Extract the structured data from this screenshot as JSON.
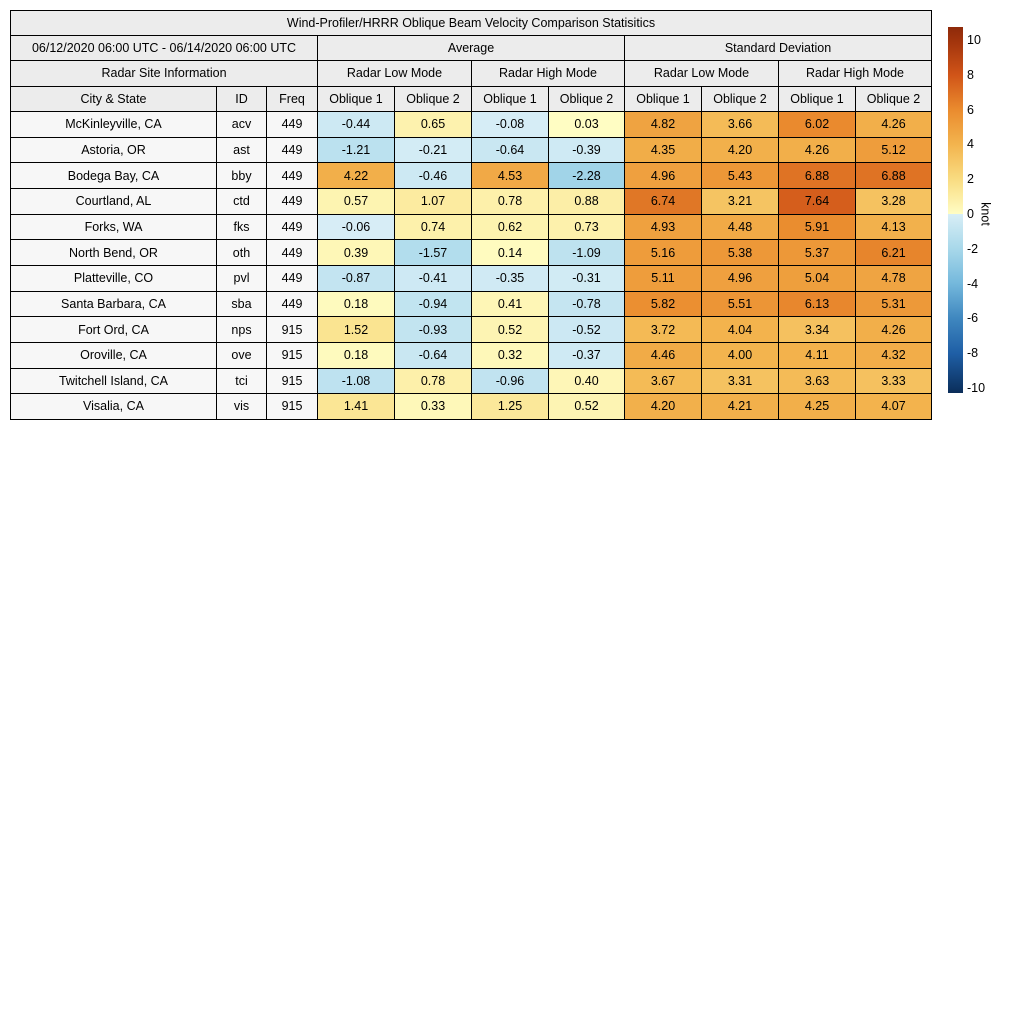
{
  "table": {
    "title": "Wind-Profiler/HRRR Oblique Beam Velocity Comparison Statisitics",
    "date_range": "06/12/2020 06:00 UTC - 06/14/2020 06:00 UTC",
    "group_headers": [
      "Average",
      "Standard Deviation"
    ],
    "site_info_header": "Radar Site Information",
    "mode_headers": [
      "Radar Low Mode",
      "Radar High Mode",
      "Radar Low Mode",
      "Radar High Mode"
    ],
    "col_headers": [
      "City & State",
      "ID",
      "Freq",
      "Oblique 1",
      "Oblique 2",
      "Oblique 1",
      "Oblique 2",
      "Oblique 1",
      "Oblique 2",
      "Oblique 1",
      "Oblique 2"
    ],
    "rows": [
      {
        "city": "McKinleyville, CA",
        "id": "acv",
        "freq": "449",
        "values": [
          -0.44,
          0.65,
          -0.08,
          0.03,
          4.82,
          3.66,
          6.02,
          4.26
        ]
      },
      {
        "city": "Astoria, OR",
        "id": "ast",
        "freq": "449",
        "values": [
          -1.21,
          -0.21,
          -0.64,
          -0.39,
          4.35,
          4.2,
          4.26,
          5.12
        ]
      },
      {
        "city": "Bodega Bay, CA",
        "id": "bby",
        "freq": "449",
        "values": [
          4.22,
          -0.46,
          4.53,
          -2.28,
          4.96,
          5.43,
          6.88,
          6.88
        ]
      },
      {
        "city": "Courtland, AL",
        "id": "ctd",
        "freq": "449",
        "values": [
          0.57,
          1.07,
          0.78,
          0.88,
          6.74,
          3.21,
          7.64,
          3.28
        ]
      },
      {
        "city": "Forks, WA",
        "id": "fks",
        "freq": "449",
        "values": [
          -0.06,
          0.74,
          0.62,
          0.73,
          4.93,
          4.48,
          5.91,
          4.13
        ]
      },
      {
        "city": "North Bend, OR",
        "id": "oth",
        "freq": "449",
        "values": [
          0.39,
          -1.57,
          0.14,
          -1.09,
          5.16,
          5.38,
          5.37,
          6.21
        ]
      },
      {
        "city": "Platteville, CO",
        "id": "pvl",
        "freq": "449",
        "values": [
          -0.87,
          -0.41,
          -0.35,
          -0.31,
          5.11,
          4.96,
          5.04,
          4.78
        ]
      },
      {
        "city": "Santa Barbara, CA",
        "id": "sba",
        "freq": "449",
        "values": [
          0.18,
          -0.94,
          0.41,
          -0.78,
          5.82,
          5.51,
          6.13,
          5.31
        ]
      },
      {
        "city": "Fort Ord, CA",
        "id": "nps",
        "freq": "915",
        "values": [
          1.52,
          -0.93,
          0.52,
          -0.52,
          3.72,
          4.04,
          3.34,
          4.26
        ]
      },
      {
        "city": "Oroville, CA",
        "id": "ove",
        "freq": "915",
        "values": [
          0.18,
          -0.64,
          0.32,
          -0.37,
          4.46,
          4.0,
          4.11,
          4.32
        ]
      },
      {
        "city": "Twitchell Island, CA",
        "id": "tci",
        "freq": "915",
        "values": [
          -1.08,
          0.78,
          -0.96,
          0.4,
          3.67,
          3.31,
          3.63,
          3.33
        ]
      },
      {
        "city": "Visalia, CA",
        "id": "vis",
        "freq": "915",
        "values": [
          1.41,
          0.33,
          1.25,
          0.52,
          4.2,
          4.21,
          4.25,
          4.07
        ]
      }
    ],
    "header_bg": "#ececec",
    "label_cell_bg": "#f7f7f7",
    "border_color": "#000000"
  },
  "colorbar": {
    "label": "knot",
    "ticks": [
      10,
      8,
      6,
      4,
      2,
      0,
      -2,
      -4,
      -6,
      -8,
      -10
    ],
    "vmin": -10,
    "vmax": 10,
    "pos_stops": [
      [
        0,
        "#fffdc4"
      ],
      [
        2,
        "#f9dc81"
      ],
      [
        4,
        "#f3b44e"
      ],
      [
        6,
        "#ea8b2e"
      ],
      [
        8,
        "#d05418"
      ],
      [
        10,
        "#a0330c"
      ],
      [
        10.75,
        "#8e2a0a"
      ]
    ],
    "neg_stops": [
      [
        0,
        "#d8eef6"
      ],
      [
        -2,
        "#a8d8ea"
      ],
      [
        -4,
        "#74b8dc"
      ],
      [
        -6,
        "#3f87bf"
      ],
      [
        -8,
        "#1f5fa6"
      ],
      [
        -10,
        "#0d3464"
      ],
      [
        -10.75,
        "#0b2d58"
      ]
    ]
  },
  "chart_data": {
    "type": "table",
    "title": "Wind-Profiler/HRRR Oblique Beam Velocity Comparison Statisitics",
    "date_range": "06/12/2020 06:00 UTC - 06/14/2020 06:00 UTC",
    "column_groups": [
      {
        "group": "Radar Site Information",
        "columns": [
          "City & State",
          "ID",
          "Freq"
        ]
      },
      {
        "group": "Average / Radar Low Mode",
        "columns": [
          "Oblique 1",
          "Oblique 2"
        ]
      },
      {
        "group": "Average / Radar High Mode",
        "columns": [
          "Oblique 1",
          "Oblique 2"
        ]
      },
      {
        "group": "Standard Deviation / Radar Low Mode",
        "columns": [
          "Oblique 1",
          "Oblique 2"
        ]
      },
      {
        "group": "Standard Deviation / Radar High Mode",
        "columns": [
          "Oblique 1",
          "Oblique 2"
        ]
      }
    ],
    "rows": [
      [
        "McKinleyville, CA",
        "acv",
        449,
        -0.44,
        0.65,
        -0.08,
        0.03,
        4.82,
        3.66,
        6.02,
        4.26
      ],
      [
        "Astoria, OR",
        "ast",
        449,
        -1.21,
        -0.21,
        -0.64,
        -0.39,
        4.35,
        4.2,
        4.26,
        5.12
      ],
      [
        "Bodega Bay, CA",
        "bby",
        449,
        4.22,
        -0.46,
        4.53,
        -2.28,
        4.96,
        5.43,
        6.88,
        6.88
      ],
      [
        "Courtland, AL",
        "ctd",
        449,
        0.57,
        1.07,
        0.78,
        0.88,
        6.74,
        3.21,
        7.64,
        3.28
      ],
      [
        "Forks, WA",
        "fks",
        449,
        -0.06,
        0.74,
        0.62,
        0.73,
        4.93,
        4.48,
        5.91,
        4.13
      ],
      [
        "North Bend, OR",
        "oth",
        449,
        0.39,
        -1.57,
        0.14,
        -1.09,
        5.16,
        5.38,
        5.37,
        6.21
      ],
      [
        "Platteville, CO",
        "pvl",
        449,
        -0.87,
        -0.41,
        -0.35,
        -0.31,
        5.11,
        4.96,
        5.04,
        4.78
      ],
      [
        "Santa Barbara, CA",
        "sba",
        449,
        0.18,
        -0.94,
        0.41,
        -0.78,
        5.82,
        5.51,
        6.13,
        5.31
      ],
      [
        "Fort Ord, CA",
        "nps",
        915,
        1.52,
        -0.93,
        0.52,
        -0.52,
        3.72,
        4.04,
        3.34,
        4.26
      ],
      [
        "Oroville, CA",
        "ove",
        915,
        0.18,
        -0.64,
        0.32,
        -0.37,
        4.46,
        4.0,
        4.11,
        4.32
      ],
      [
        "Twitchell Island, CA",
        "tci",
        915,
        -1.08,
        0.78,
        -0.96,
        0.4,
        3.67,
        3.31,
        3.63,
        3.33
      ],
      [
        "Visalia, CA",
        "vis",
        915,
        1.41,
        0.33,
        1.25,
        0.52,
        4.2,
        4.21,
        4.25,
        4.07
      ]
    ],
    "colorbar": {
      "label": "knot",
      "range": [
        -10,
        10
      ],
      "tick_step": 2
    }
  }
}
